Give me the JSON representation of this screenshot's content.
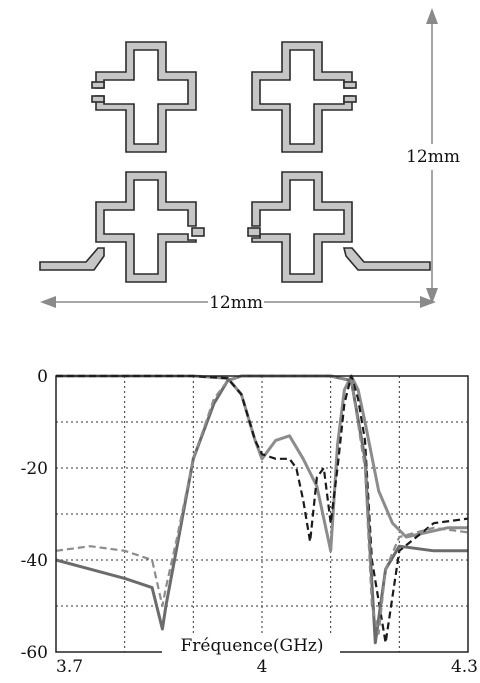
{
  "layout_diagram": {
    "height_label": "12mm",
    "width_label": "12mm"
  },
  "chart_data": {
    "type": "line",
    "xlabel": "Fréquence(GHz)",
    "xlim": [
      3.7,
      4.3
    ],
    "ylim": [
      -60,
      0
    ],
    "x_tick_labels": [
      {
        "v": 3.7,
        "t": "3.7"
      },
      {
        "v": 4.0,
        "t": "4"
      },
      {
        "v": 4.3,
        "t": "4.3"
      }
    ],
    "y_tick_labels": [
      {
        "v": 0,
        "t": "0"
      },
      {
        "v": -20,
        "t": "-20"
      },
      {
        "v": -40,
        "t": "-40"
      },
      {
        "v": -60,
        "t": "-60"
      }
    ],
    "grid": true,
    "series": [
      {
        "style": "solid",
        "color": "#8c8c8c",
        "x": [
          3.7,
          3.9,
          3.95,
          3.97,
          3.99,
          4.0,
          4.02,
          4.04,
          4.06,
          4.08,
          4.1,
          4.11,
          4.12,
          4.13,
          4.14,
          4.15,
          4.17,
          4.19,
          4.21,
          4.24,
          4.27,
          4.3
        ],
        "y": [
          0,
          0,
          -0.5,
          -4,
          -14,
          -18,
          -14,
          -13,
          -18,
          -24,
          -38,
          -15,
          -3,
          0,
          -3,
          -10,
          -25,
          -32,
          -35,
          -34,
          -33,
          -33
        ]
      },
      {
        "style": "dashed",
        "color": "#1a1a1a",
        "x": [
          3.7,
          3.9,
          3.95,
          3.97,
          3.99,
          4.0,
          4.02,
          4.04,
          4.05,
          4.06,
          4.07,
          4.08,
          4.09,
          4.1,
          4.11,
          4.12,
          4.13,
          4.14,
          4.15,
          4.16,
          4.18,
          4.2,
          4.25,
          4.3
        ],
        "y": [
          0,
          0,
          -0.5,
          -4,
          -14,
          -17,
          -18,
          -18,
          -20,
          -27,
          -36,
          -22,
          -20,
          -32,
          -20,
          -6,
          0,
          -5,
          -14,
          -40,
          -58,
          -38,
          -32,
          -31
        ]
      },
      {
        "style": "solid",
        "color": "#6b6b6b",
        "x": [
          3.7,
          3.75,
          3.8,
          3.84,
          3.855,
          3.86,
          3.875,
          3.9,
          3.93,
          3.95,
          3.97,
          3.99,
          4.0,
          4.05,
          4.1,
          4.13,
          4.15,
          4.16,
          4.165,
          4.18,
          4.2,
          4.25,
          4.3
        ],
        "y": [
          -40,
          -42,
          -44,
          -46,
          -55,
          -50,
          -38,
          -18,
          -6,
          -1,
          0,
          0,
          0,
          0,
          0,
          -1,
          -18,
          -45,
          -58,
          -42,
          -37,
          -38,
          -38
        ]
      },
      {
        "style": "dashed",
        "color": "#8c8c8c",
        "x": [
          3.7,
          3.75,
          3.8,
          3.84,
          3.855,
          3.86,
          3.875,
          3.9,
          3.93,
          3.95,
          3.97,
          3.99,
          4.0,
          4.05,
          4.1,
          4.13,
          4.15,
          4.16,
          4.17,
          4.18,
          4.2,
          4.25,
          4.3
        ],
        "y": [
          -38,
          -37,
          -38,
          -40,
          -50,
          -46,
          -36,
          -18,
          -5,
          -1,
          0,
          0,
          0,
          0,
          0,
          -1,
          -20,
          -50,
          -56,
          -42,
          -35,
          -33,
          -34
        ]
      }
    ]
  }
}
